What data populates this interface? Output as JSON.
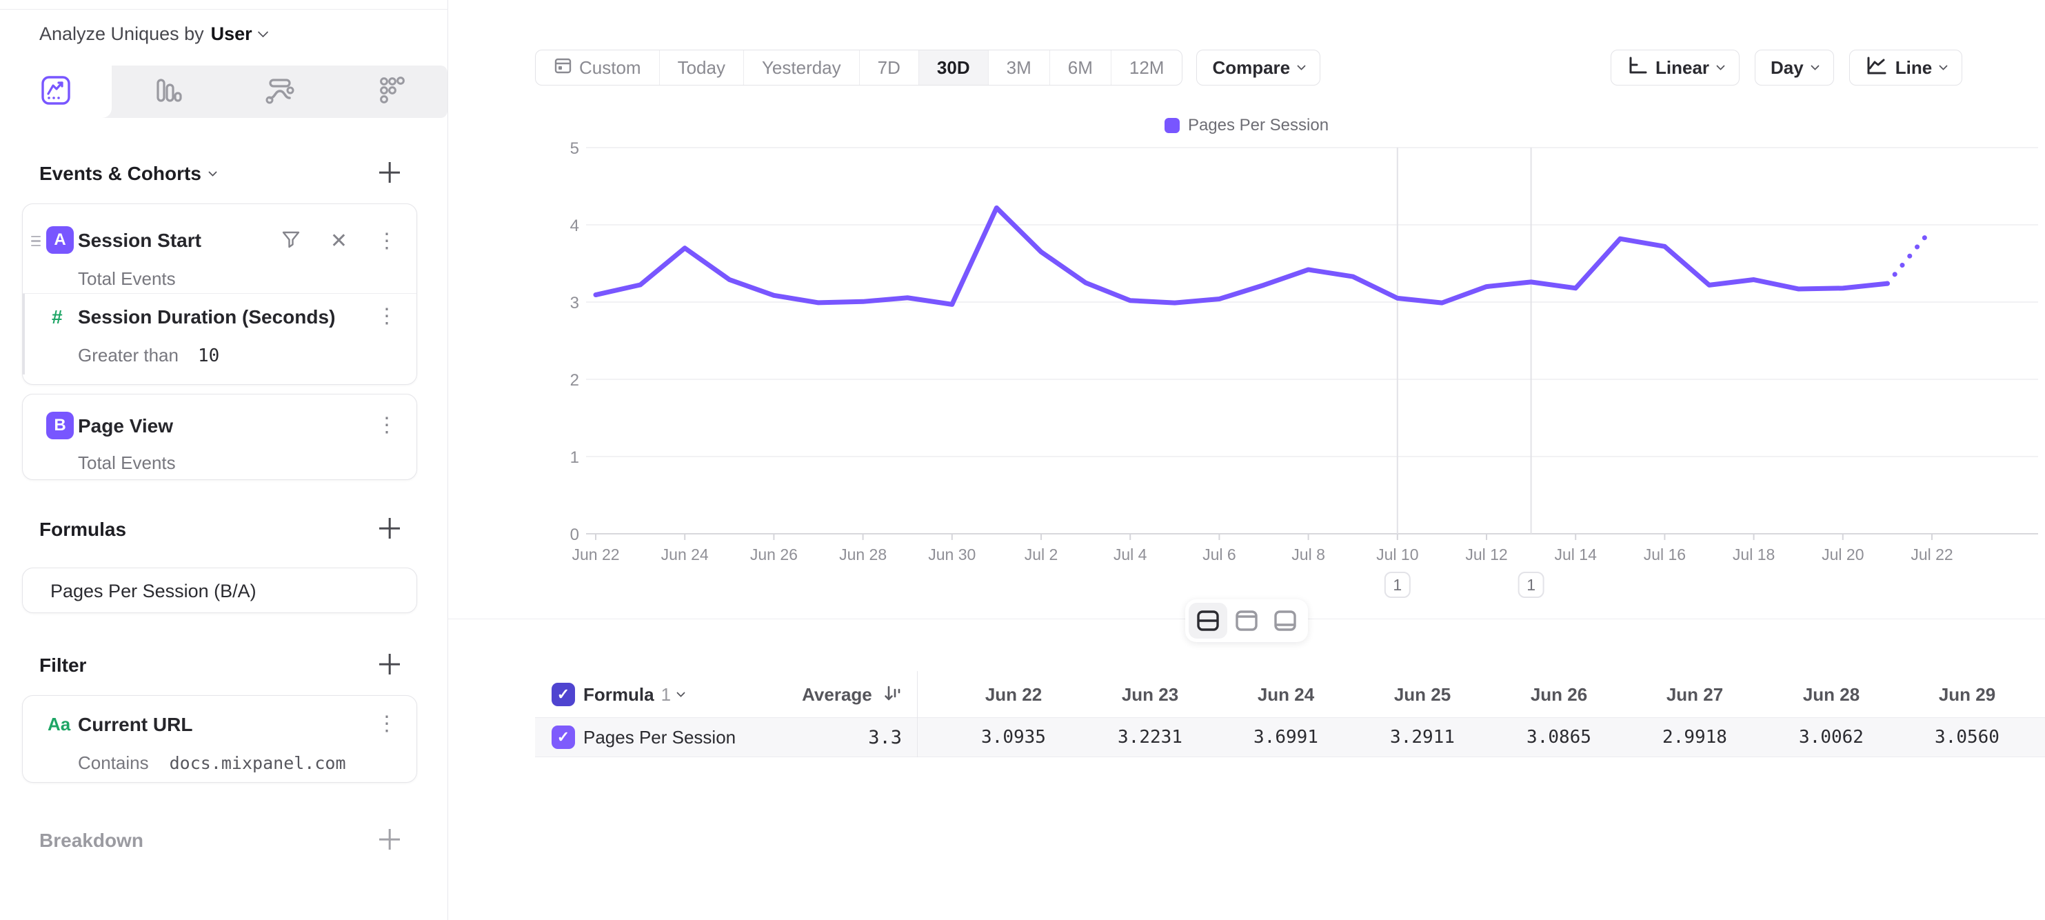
{
  "sidebar": {
    "analyze_label": "Analyze Uniques by",
    "analyze_value": "User",
    "events_section": {
      "title": "Events & Cohorts"
    },
    "event_a": {
      "letter": "A",
      "name": "Session Start",
      "aggregation": "Total Events",
      "property": {
        "name": "Session Duration (Seconds)",
        "operator": "Greater than",
        "value": "10"
      }
    },
    "event_b": {
      "letter": "B",
      "name": "Page View",
      "aggregation": "Total Events"
    },
    "formulas_section": {
      "title": "Formulas",
      "formula_name": "Pages Per Session (B/A)"
    },
    "filter_section": {
      "title": "Filter",
      "item": {
        "icon": "Aa",
        "name": "Current URL",
        "operator": "Contains",
        "value": "docs.mixpanel.com"
      }
    },
    "breakdown_section": {
      "title": "Breakdown"
    }
  },
  "toolbar": {
    "ranges": [
      "Custom",
      "Today",
      "Yesterday",
      "7D",
      "30D",
      "3M",
      "6M",
      "12M"
    ],
    "active_range": "30D",
    "compare_label": "Compare",
    "axis_scale_label": "Linear",
    "granularity_label": "Day",
    "chart_type_label": "Line"
  },
  "legend": {
    "label": "Pages Per Session",
    "color": "#7856ff"
  },
  "chart_data": {
    "type": "line",
    "x": [
      "Jun 22",
      "Jun 23",
      "Jun 24",
      "Jun 25",
      "Jun 26",
      "Jun 27",
      "Jun 28",
      "Jun 29",
      "Jun 30",
      "Jul 1",
      "Jul 2",
      "Jul 3",
      "Jul 4",
      "Jul 5",
      "Jul 6",
      "Jul 7",
      "Jul 8",
      "Jul 9",
      "Jul 10",
      "Jul 11",
      "Jul 12",
      "Jul 13",
      "Jul 14",
      "Jul 15",
      "Jul 16",
      "Jul 17",
      "Jul 18",
      "Jul 19",
      "Jul 20",
      "Jul 21",
      "Jul 22"
    ],
    "series": [
      {
        "name": "Pages Per Session",
        "values": [
          3.0935,
          3.2231,
          3.6991,
          3.2911,
          3.0865,
          2.9918,
          3.0062,
          3.056,
          2.97,
          4.22,
          3.65,
          3.25,
          3.02,
          2.99,
          3.04,
          3.22,
          3.42,
          3.33,
          3.05,
          2.99,
          3.2,
          3.26,
          3.18,
          3.82,
          3.72,
          3.22,
          3.29,
          3.17,
          3.18,
          3.24,
          3.95
        ]
      }
    ],
    "ylim": [
      0,
      5
    ],
    "y_ticks": [
      0,
      1,
      2,
      3,
      4,
      5
    ],
    "x_tick_every": 2,
    "solid_until_index": 29,
    "line_color": "#7856ff",
    "annotations": [
      {
        "index": 18,
        "date": "Jul 10",
        "label": "1"
      },
      {
        "index": 21,
        "date": "Jul 13",
        "label": "1"
      }
    ],
    "legend_position": "top-center",
    "grid": "horizontal"
  },
  "table": {
    "group_label": "Formula",
    "group_number": "1",
    "average_label": "Average",
    "columns": [
      "Jun 22",
      "Jun 23",
      "Jun 24",
      "Jun 25",
      "Jun 26",
      "Jun 27",
      "Jun 28",
      "Jun 29"
    ],
    "row": {
      "name": "Pages Per Session",
      "average": "3.3",
      "values": [
        "3.0935",
        "3.2231",
        "3.6991",
        "3.2911",
        "3.0865",
        "2.9918",
        "3.0062",
        "3.0560"
      ]
    }
  },
  "colors": {
    "accent": "#7856ff",
    "checkbox_header": "#4f44d0",
    "checkbox_row": "#7e5bfc",
    "green_property": "#1ea565"
  }
}
